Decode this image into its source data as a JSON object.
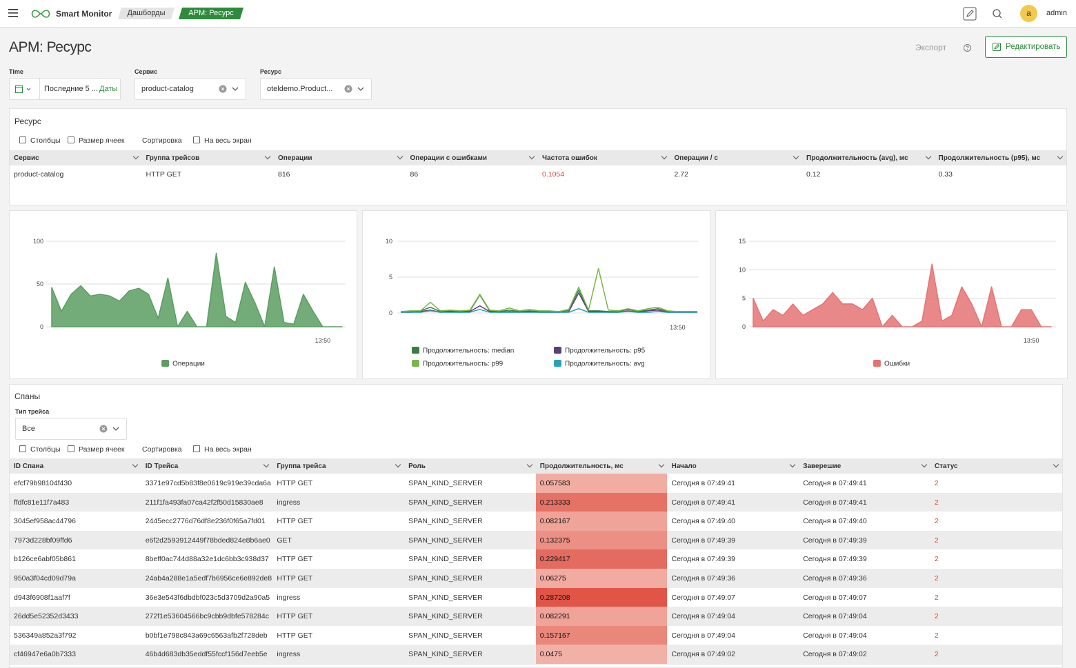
{
  "header": {
    "brand": "Smart Monitor",
    "breadcrumbs": [
      "Дашборды",
      "APM: Ресурс"
    ],
    "avatar": "a",
    "user": "admin"
  },
  "page": {
    "title": "APM: Ресурс",
    "export": "Экспорт",
    "edit": "Редактировать"
  },
  "filters": {
    "time": {
      "label": "Time",
      "value": "Последние 5 ...",
      "link": "Даты"
    },
    "service": {
      "label": "Сервис",
      "value": "product-catalog"
    },
    "resource": {
      "label": "Ресурс",
      "value": "oteldemo.Product..."
    }
  },
  "resource_panel": {
    "title": "Ресурс",
    "toolbar": [
      "Столбцы",
      "Размер ячеек",
      "Сортировка",
      "На весь экран"
    ],
    "columns": [
      "Сервис",
      "Группа трейсов",
      "Операции",
      "Операции с ошибками",
      "Частота ошибок",
      "Операции / с",
      "Продолжительность (avg), мс",
      "Продолжительность (p95), мс"
    ],
    "rows": [
      [
        "product-catalog",
        "HTTP GET",
        816,
        86,
        0.1054,
        2.72,
        0.12,
        0.33
      ]
    ]
  },
  "chart_data": [
    {
      "type": "area",
      "categories": [
        null,
        null,
        null,
        null,
        null,
        null,
        null,
        null,
        null,
        null,
        null,
        null,
        null,
        null,
        null,
        null,
        null,
        null,
        null,
        null,
        null,
        null,
        null,
        null,
        null,
        null,
        null,
        null,
        "13:50",
        null,
        null
      ],
      "series": [
        {
          "name": "Операции",
          "color": "#5a9e62",
          "values": [
            46,
            18,
            38,
            48,
            36,
            38,
            36,
            30,
            42,
            45,
            38,
            10,
            57,
            0,
            18,
            0,
            0,
            86,
            12,
            5,
            52,
            28,
            0,
            70,
            5,
            3,
            38,
            18,
            0,
            0,
            0
          ]
        }
      ],
      "ylim": [
        0,
        100
      ],
      "yticks": [
        0,
        50,
        100
      ],
      "grid": true,
      "legend": "bottom"
    },
    {
      "type": "line",
      "categories": [
        null,
        null,
        null,
        null,
        null,
        null,
        null,
        null,
        null,
        null,
        null,
        null,
        null,
        null,
        null,
        null,
        null,
        null,
        null,
        null,
        null,
        null,
        null,
        null,
        null,
        null,
        null,
        null,
        "13:50",
        null,
        null
      ],
      "series": [
        {
          "name": "Продолжительность: median",
          "color": "#3a7d44",
          "values": [
            0.2,
            0.2,
            0.3,
            0.8,
            0.2,
            0.3,
            0.2,
            0.3,
            2.5,
            0.3,
            0.2,
            0.4,
            0.2,
            0.3,
            0.2,
            0.2,
            0.2,
            0.4,
            3.2,
            0.3,
            0.3,
            0.2,
            0.2,
            0.5,
            0.2,
            0.4,
            0.6,
            0.2,
            0.2,
            0.2,
            0.2
          ]
        },
        {
          "name": "Продолжительность: p95",
          "color": "#5b3f7a",
          "values": [
            0.1,
            0.1,
            0.2,
            0.4,
            0.1,
            0.2,
            0.1,
            0.2,
            1.0,
            0.2,
            0.1,
            0.2,
            0.1,
            0.2,
            0.1,
            0.1,
            0.1,
            0.2,
            2.8,
            0.2,
            0.2,
            0.1,
            0.1,
            0.3,
            0.1,
            0.3,
            0.4,
            0.1,
            0.1,
            0.1,
            0.1
          ]
        },
        {
          "name": "Продолжительность: p99",
          "color": "#7ab648",
          "values": [
            0.2,
            0.3,
            0.3,
            1.5,
            0.3,
            0.4,
            0.3,
            0.4,
            2.6,
            0.4,
            0.3,
            0.7,
            0.3,
            0.5,
            0.3,
            0.3,
            0.2,
            0.5,
            3.6,
            0.4,
            6.2,
            0.4,
            0.3,
            0.6,
            0.3,
            0.6,
            0.8,
            0.3,
            0.2,
            0.2,
            0.2
          ]
        },
        {
          "name": "Продолжительность: avg",
          "color": "#2aa0b8",
          "values": [
            0.1,
            0.1,
            0.1,
            0.3,
            0.1,
            0.1,
            0.1,
            0.1,
            0.5,
            0.1,
            0.1,
            0.1,
            0.1,
            0.1,
            0.1,
            0.1,
            0.1,
            0.1,
            0.6,
            0.1,
            0.1,
            0.1,
            0.1,
            0.2,
            0.1,
            0.1,
            0.2,
            0.1,
            0.1,
            0.1,
            0.1
          ]
        }
      ],
      "ylim": [
        0,
        10
      ],
      "yticks": [
        0,
        5,
        10
      ],
      "grid": true,
      "legend": "bottom"
    },
    {
      "type": "area",
      "categories": [
        null,
        null,
        null,
        null,
        null,
        null,
        null,
        null,
        null,
        null,
        null,
        null,
        null,
        null,
        null,
        null,
        null,
        null,
        null,
        null,
        null,
        null,
        null,
        null,
        null,
        null,
        null,
        null,
        "13:50",
        null,
        null
      ],
      "series": [
        {
          "name": "Ошибки",
          "color": "#e57373",
          "values": [
            5,
            1,
            3,
            2,
            4,
            2,
            3,
            4,
            6,
            4,
            4,
            3,
            5,
            0,
            2,
            0,
            0,
            1,
            11,
            1,
            2,
            7,
            4,
            0,
            7,
            0,
            0,
            3,
            3,
            0,
            0
          ]
        }
      ],
      "ylim": [
        0,
        15
      ],
      "yticks": [
        0,
        5,
        10,
        15
      ],
      "grid": true,
      "legend": "bottom"
    }
  ],
  "spans_panel": {
    "title": "Спаны",
    "filter_label": "Тип трейса",
    "filter_value": "Все",
    "toolbar": [
      "Столбцы",
      "Размер ячеек",
      "Сортировка",
      "На весь экран"
    ],
    "columns": [
      "ID Спана",
      "ID Трейса",
      "Группа трейса",
      "Роль",
      "Продолжительность, мс",
      "Начало",
      "Заверешие",
      "Статус"
    ],
    "rows": [
      [
        "efcf79b98104f430",
        "3371e97cd5b83f8e0619c919e39cda6a",
        "HTTP GET",
        "SPAN_KIND_SERVER",
        0.057583,
        "Сегодня в 07:49:41",
        "Сегодня в 07:49:41",
        2
      ],
      [
        "ffdfc81e11f7a483",
        "211f1fa493fa07ca42f2f50d15830ae8",
        "ingress",
        "SPAN_KIND_SERVER",
        0.213333,
        "Сегодня в 07:49:41",
        "Сегодня в 07:49:41",
        2
      ],
      [
        "3045ef958ac44796",
        "2445ecc2776d76df8e236f0f65a7fd01",
        "HTTP GET",
        "SPAN_KIND_SERVER",
        0.082167,
        "Сегодня в 07:49:40",
        "Сегодня в 07:49:40",
        2
      ],
      [
        "7973d228bf09ffd6",
        "e6f2d2593912449f78bded824e8b6ae0",
        "GET",
        "SPAN_KIND_SERVER",
        0.132375,
        "Сегодня в 07:49:39",
        "Сегодня в 07:49:39",
        2
      ],
      [
        "b126ce6abf05b861",
        "8beff0ac744d88a32e1dc6bb3c938d37",
        "HTTP GET",
        "SPAN_KIND_SERVER",
        0.229417,
        "Сегодня в 07:49:39",
        "Сегодня в 07:49:39",
        2
      ],
      [
        "950a3f04cd09d79a",
        "24ab4a288e1a5edf7b6956ce6e892de8",
        "HTTP GET",
        "SPAN_KIND_SERVER",
        0.06275,
        "Сегодня в 07:49:36",
        "Сегодня в 07:49:36",
        2
      ],
      [
        "d943f6908f1aaf7f",
        "36e3e543f6dbdbf023c5d3709d2a90a5",
        "ingress",
        "SPAN_KIND_SERVER",
        0.287208,
        "Сегодня в 07:49:07",
        "Сегодня в 07:49:07",
        2
      ],
      [
        "26dd5e52352d3433",
        "272f1e53604566bc9cbb9dbfe578284c",
        "HTTP GET",
        "SPAN_KIND_SERVER",
        0.082291,
        "Сегодня в 07:49:04",
        "Сегодня в 07:49:04",
        2
      ],
      [
        "536349a852a3f792",
        "b0bf1e798c843a69c6563afb2f728deb",
        "HTTP GET",
        "SPAN_KIND_SERVER",
        0.157167,
        "Сегодня в 07:49:04",
        "Сегодня в 07:49:04",
        2
      ],
      [
        "cf46947e6a0b7333",
        "46b4d683db35eddf55fccf156d7eeb5e",
        "ingress",
        "SPAN_KIND_SERVER",
        0.0475,
        "Сегодня в 07:49:02",
        "Сегодня в 07:49:02",
        2
      ]
    ]
  }
}
